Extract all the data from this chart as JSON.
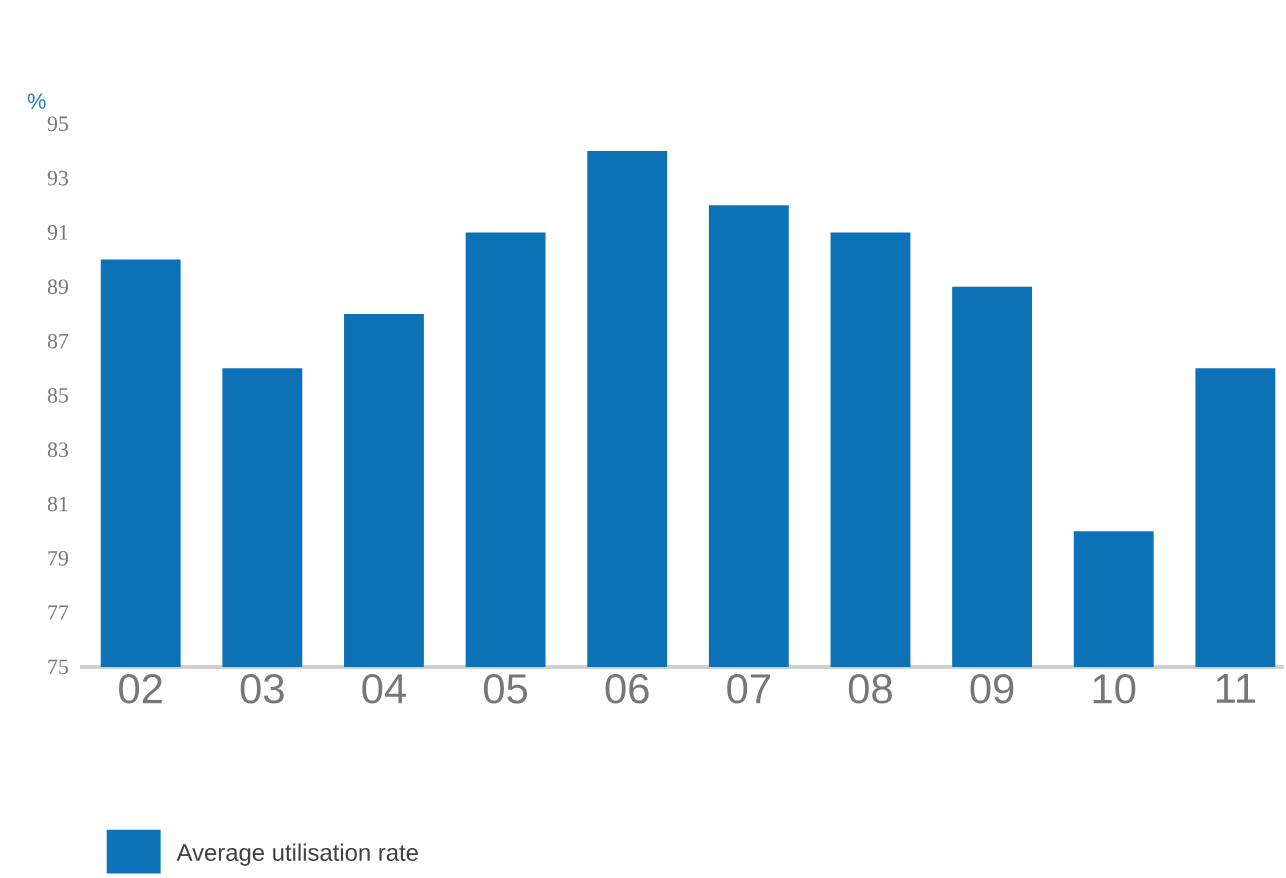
{
  "chart_data": {
    "type": "bar",
    "ylabel": "%",
    "categories": [
      "02",
      "03",
      "04",
      "05",
      "06",
      "07",
      "08",
      "09",
      "10",
      "11"
    ],
    "series": [
      {
        "name": "Average utilisation rate",
        "color": "#0d72b5",
        "values": [
          90,
          86,
          88,
          91,
          94,
          92,
          91,
          89,
          80,
          86
        ]
      }
    ],
    "ylim": [
      75,
      95
    ],
    "yticks": [
      75,
      77,
      79,
      81,
      83,
      85,
      87,
      89,
      91,
      93,
      95
    ],
    "grid": false,
    "legend": "bottom left"
  }
}
